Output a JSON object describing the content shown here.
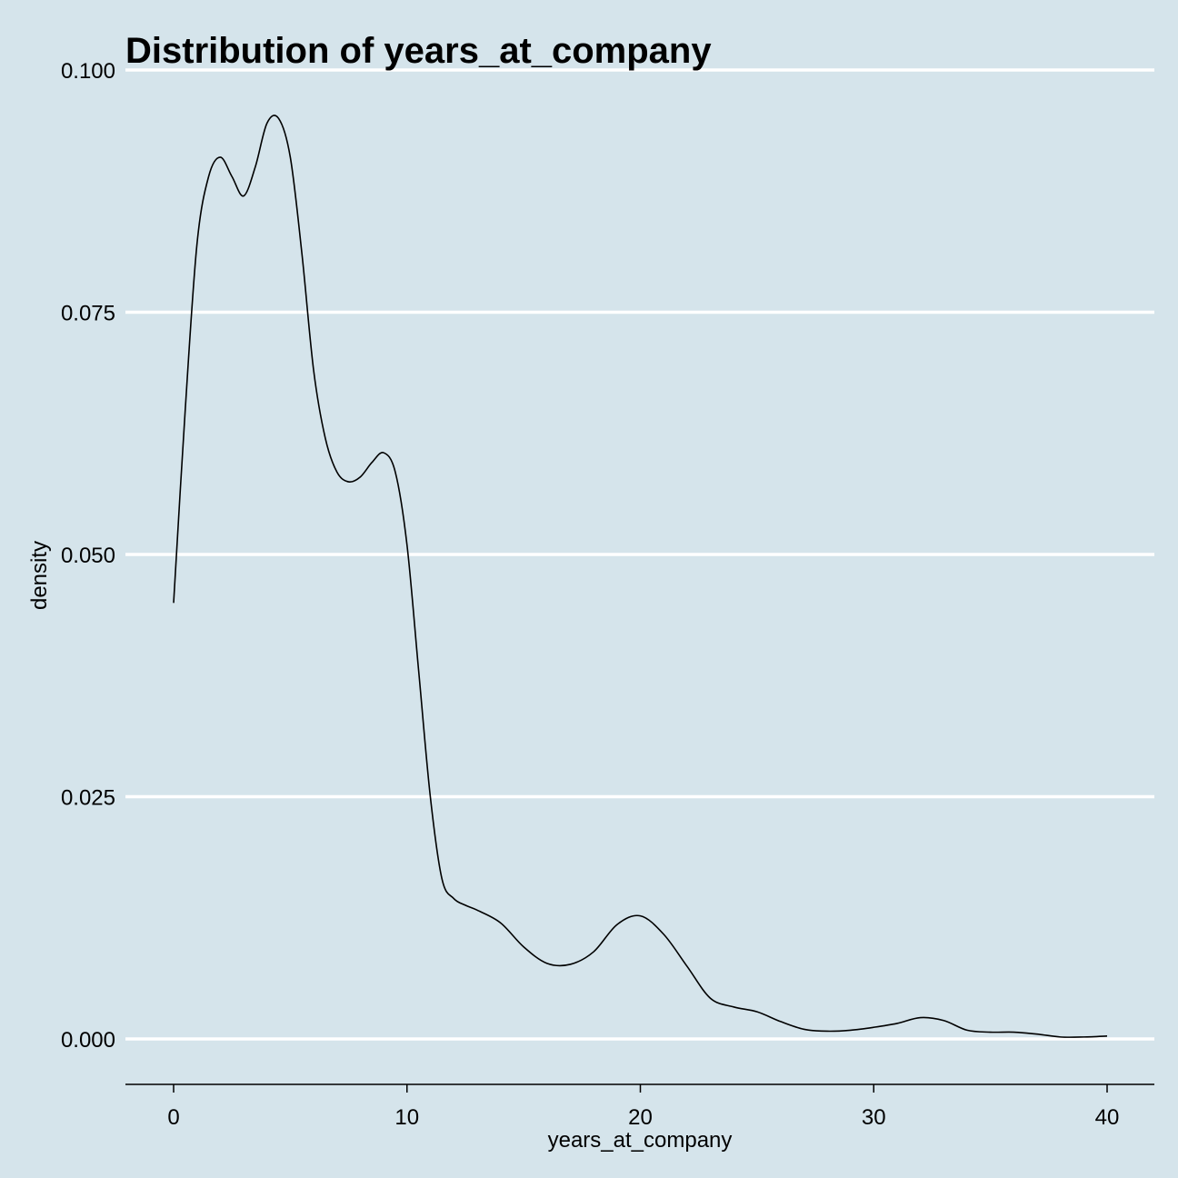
{
  "chart_data": {
    "type": "line",
    "title": "Distribution of years_at_company",
    "xlabel": "years_at_company",
    "ylabel": "density",
    "xlim": [
      -2,
      42
    ],
    "ylim": [
      -0.0048,
      0.1
    ],
    "x_ticks": [
      0,
      10,
      20,
      30,
      40
    ],
    "x_tick_labels": [
      "0",
      "10",
      "20",
      "30",
      "40"
    ],
    "y_ticks": [
      0.0,
      0.025,
      0.05,
      0.075,
      0.1
    ],
    "y_tick_labels": [
      "0.000",
      "0.025",
      "0.050",
      "0.075",
      "0.100"
    ],
    "grid": "horizontal",
    "series": [
      {
        "name": "density",
        "color": "#000000",
        "x": [
          0,
          0.5,
          1,
          1.5,
          2,
          2.5,
          3,
          3.5,
          4,
          4.5,
          5,
          5.5,
          6,
          6.5,
          7,
          7.5,
          8,
          8.5,
          9,
          9.5,
          10,
          10.5,
          11,
          11.5,
          12,
          12.5,
          13,
          14,
          15,
          16,
          17,
          18,
          19,
          20,
          21,
          22,
          23,
          24,
          25,
          26,
          27,
          28,
          29,
          30,
          31,
          32,
          33,
          34,
          35,
          36,
          37,
          38,
          39,
          40
        ],
        "values": [
          0.045,
          0.065,
          0.082,
          0.089,
          0.091,
          0.089,
          0.087,
          0.09,
          0.0945,
          0.095,
          0.091,
          0.081,
          0.069,
          0.062,
          0.0585,
          0.0575,
          0.058,
          0.0595,
          0.0605,
          0.0585,
          0.051,
          0.038,
          0.025,
          0.0165,
          0.0145,
          0.0138,
          0.0133,
          0.012,
          0.0095,
          0.0078,
          0.0077,
          0.009,
          0.0118,
          0.0127,
          0.0108,
          0.0075,
          0.0042,
          0.0033,
          0.0028,
          0.0018,
          0.001,
          0.0008,
          0.0009,
          0.0012,
          0.0016,
          0.0022,
          0.0019,
          0.0009,
          0.0007,
          0.0007,
          0.0005,
          0.0002,
          0.0002,
          0.0003
        ]
      }
    ]
  }
}
